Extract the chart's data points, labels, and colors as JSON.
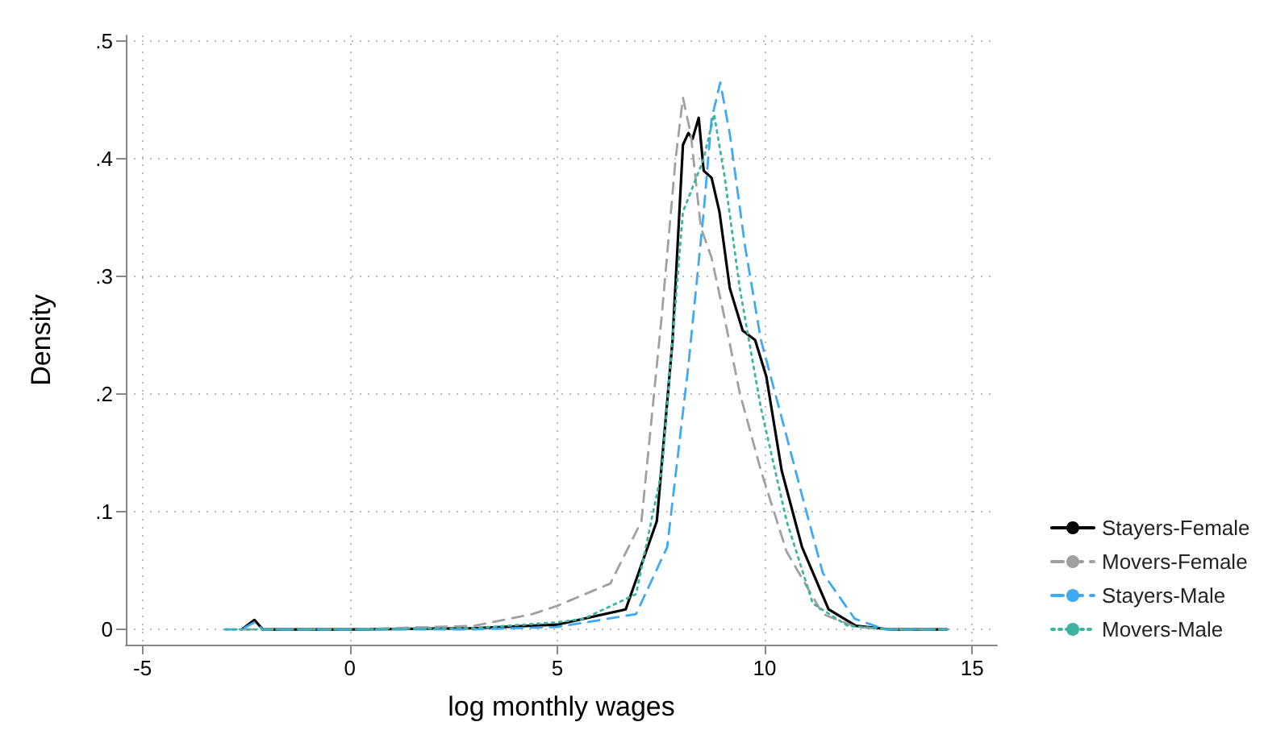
{
  "chart_data": {
    "type": "line",
    "xlabel": "log monthly wages",
    "ylabel": "Density",
    "xlim": [
      -5.4,
      15.6
    ],
    "xticks": [
      -5,
      0,
      5,
      10,
      15
    ],
    "ylim": [
      -0.013,
      0.505
    ],
    "yticks": [
      0,
      {
        "value": 0.1,
        "label": ".1"
      },
      {
        "value": 0.2,
        "label": ".2"
      },
      {
        "value": 0.3,
        "label": ".3"
      },
      {
        "value": 0.4,
        "label": ".4"
      },
      {
        "value": 0.5,
        "label": ".5"
      }
    ],
    "grid": true,
    "legend": "right",
    "marker": "none",
    "series": [
      {
        "name": "Stayers-Female",
        "color": "#000000",
        "line_style": "solid",
        "x": [
          -2.6,
          -2.3,
          -2.1,
          0,
          3,
          5,
          6.65,
          7.4,
          7.78,
          8.03,
          8.16,
          8.26,
          8.41,
          8.53,
          8.72,
          8.91,
          9.16,
          9.47,
          9.77,
          10.04,
          10.41,
          10.9,
          11.54,
          12.2,
          13,
          14.4
        ],
        "values": [
          0,
          0.008,
          0,
          0,
          0.001,
          0.004,
          0.017,
          0.092,
          0.246,
          0.412,
          0.422,
          0.417,
          0.435,
          0.39,
          0.384,
          0.355,
          0.29,
          0.254,
          0.246,
          0.215,
          0.135,
          0.07,
          0.017,
          0.003,
          0,
          0
        ]
      },
      {
        "name": "Movers-Female",
        "color": "#a0a0a0",
        "line_style": "dashed",
        "x": [
          -2.6,
          0,
          3,
          4.4,
          5,
          6.28,
          7.03,
          7.52,
          7.85,
          8.03,
          8.22,
          8.46,
          8.72,
          9.02,
          9.4,
          9.91,
          10.53,
          11.4,
          12.2,
          13,
          14.4
        ],
        "values": [
          0,
          0,
          0.003,
          0.013,
          0.02,
          0.039,
          0.092,
          0.267,
          0.399,
          0.452,
          0.421,
          0.342,
          0.316,
          0.267,
          0.201,
          0.135,
          0.066,
          0.013,
          0.002,
          0,
          0
        ]
      },
      {
        "name": "Stayers-Male",
        "color": "#3fa9f5",
        "line_style": "dashed",
        "x": [
          -3,
          -2.6,
          -2.3,
          -2.1,
          0,
          3,
          5,
          6.9,
          7.65,
          8.16,
          8.53,
          8.72,
          8.93,
          9.16,
          9.53,
          9.91,
          10.41,
          10.9,
          11.4,
          12.17,
          12.9,
          14.4
        ],
        "values": [
          0,
          0,
          0.006,
          0,
          0,
          0,
          0.002,
          0.013,
          0.07,
          0.224,
          0.355,
          0.434,
          0.465,
          0.421,
          0.325,
          0.246,
          0.18,
          0.114,
          0.048,
          0.009,
          0,
          0
        ]
      },
      {
        "name": "Movers-Male",
        "color": "#3cb4a0",
        "line_style": "dotted",
        "x": [
          -3,
          0,
          3,
          5,
          5.64,
          6.9,
          7.52,
          8.03,
          8.53,
          8.78,
          9.03,
          9.4,
          9.91,
          10.53,
          11.16,
          12,
          13,
          14.4
        ],
        "values": [
          0,
          0,
          0.001,
          0.006,
          0.009,
          0.03,
          0.135,
          0.355,
          0.4,
          0.438,
          0.386,
          0.29,
          0.188,
          0.092,
          0.022,
          0.003,
          0,
          0
        ]
      }
    ]
  }
}
